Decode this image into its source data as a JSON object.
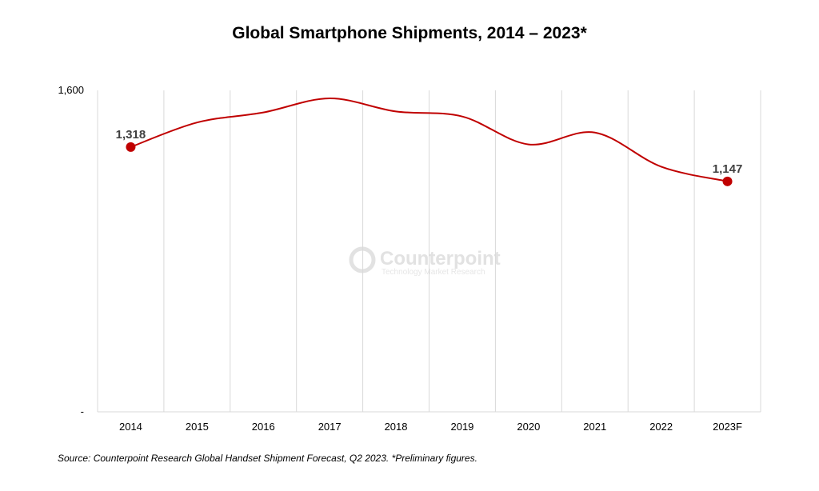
{
  "chart_data": {
    "type": "line",
    "title": "Global Smartphone Shipments, 2014 – 2023*",
    "categories": [
      "2014",
      "2015",
      "2016",
      "2017",
      "2018",
      "2019",
      "2020",
      "2021",
      "2022",
      "2023F"
    ],
    "series": [
      {
        "values": [
          1318,
          1440,
          1490,
          1560,
          1495,
          1470,
          1331,
          1390,
          1220,
          1147
        ]
      }
    ],
    "data_labels": [
      {
        "category": "2014",
        "text": "1,318"
      },
      {
        "category": "2023F",
        "text": "1,147"
      }
    ],
    "y_ticks": [
      {
        "value": 0,
        "label": "-"
      },
      {
        "value": 1600,
        "label": "1,600"
      }
    ],
    "ylim": [
      0,
      1600
    ],
    "grid": "vertical",
    "line_color": "#c00000",
    "smooth": true
  },
  "source": "Source:  Counterpoint Research Global Handset Shipment Forecast, Q2 2023. *Preliminary figures.",
  "watermark": {
    "name": "Counterpoint",
    "tagline": "Technology Market Research"
  }
}
